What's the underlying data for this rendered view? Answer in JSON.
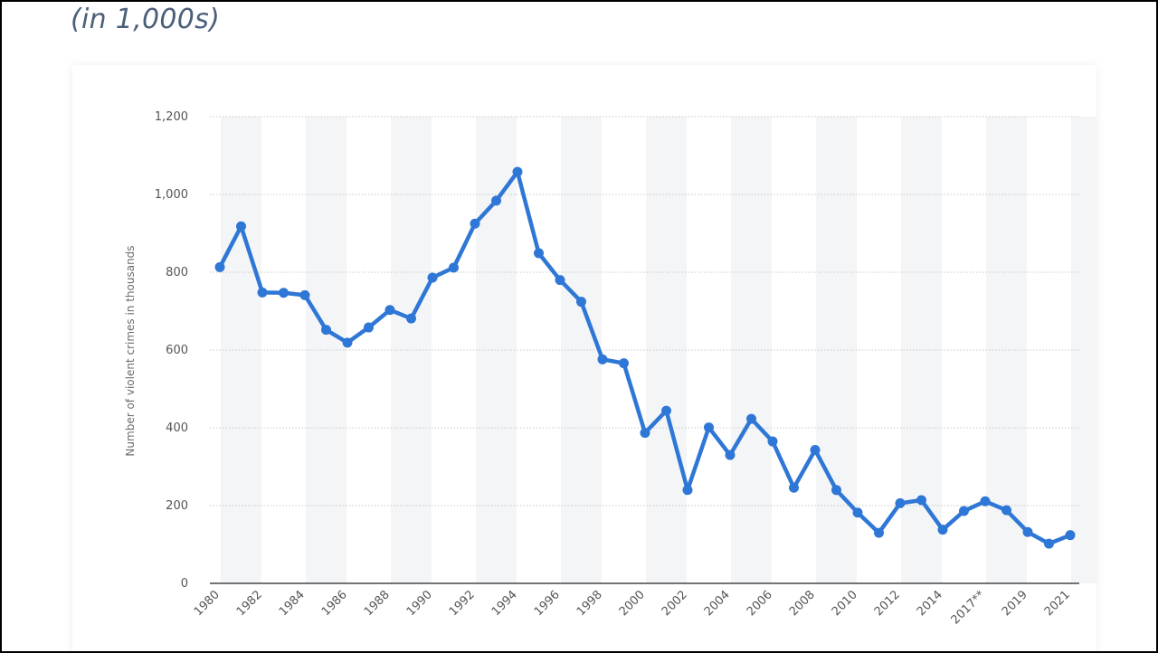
{
  "header": {
    "subtitle": "(in 1,000s)"
  },
  "chart_data": {
    "type": "line",
    "ylabel": "Number of violent crimes in thousands",
    "xlabel": "",
    "ylim": [
      0,
      1200
    ],
    "yticks": [
      "0",
      "200",
      "400",
      "600",
      "800",
      "1,000",
      "1,200"
    ],
    "ytick_values": [
      0,
      200,
      400,
      600,
      800,
      1000,
      1200
    ],
    "grid": "horizontal dotted",
    "line_color": "#2f77d6",
    "x": [
      "1980",
      "1981",
      "1982",
      "1983",
      "1984",
      "1985",
      "1986",
      "1987",
      "1988",
      "1989",
      "1990",
      "1991",
      "1992",
      "1993",
      "1994",
      "1995",
      "1996",
      "1997",
      "1998",
      "1999",
      "2000",
      "2001",
      "2002",
      "2003",
      "2004",
      "2005",
      "2006",
      "2007",
      "2008",
      "2009",
      "2010",
      "2011",
      "2012",
      "2013",
      "2014",
      "2015",
      "2017**",
      "2018",
      "2019",
      "2020",
      "2021"
    ],
    "x_tick_labels": [
      "1980",
      "1982",
      "1984",
      "1986",
      "1988",
      "1990",
      "1992",
      "1994",
      "1996",
      "1998",
      "2000",
      "2002",
      "2004",
      "2006",
      "2008",
      "2010",
      "2012",
      "2014",
      "2017**",
      "2019",
      "2021"
    ],
    "series": [
      {
        "values": [
          813,
          918,
          748,
          747,
          741,
          652,
          619,
          658,
          703,
          681,
          786,
          812,
          925,
          984,
          1058,
          849,
          780,
          724,
          576,
          566,
          387,
          444,
          240,
          401,
          330,
          423,
          365,
          246,
          343,
          240,
          182,
          130,
          206,
          214,
          138,
          186,
          211,
          188,
          132,
          102,
          124
        ]
      }
    ]
  }
}
